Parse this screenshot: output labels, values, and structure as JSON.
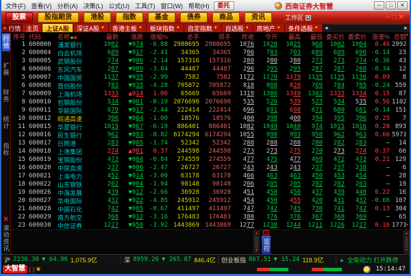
{
  "window": {
    "title": "西南证券大智慧",
    "menu": [
      "文件(F)",
      "查看(V)",
      "分析(A)",
      "决策(L)",
      "公式(U)",
      "工具(T)",
      "窗口(W)",
      "帮助(H)"
    ],
    "trade_label": "委托",
    "win_buttons": [
      "─",
      "□",
      "✕"
    ]
  },
  "toolbar": {
    "buttons": [
      "股票",
      "股指期货",
      "港股",
      "指数",
      "基金",
      "债券",
      "商品",
      "资讯"
    ],
    "active_button": "股票",
    "workspace_label": "工作区",
    "mini_controls": [
      "─",
      "□",
      "✕"
    ]
  },
  "tabbar": {
    "lead_label": "行情",
    "tabs": [
      {
        "label": "主页",
        "dropdown": false,
        "active": false
      },
      {
        "label": "上证A股",
        "dropdown": false,
        "active": true
      },
      {
        "label": "深证A股",
        "dropdown": true,
        "active": false
      },
      {
        "label": "香港主板",
        "dropdown": true,
        "active": false
      },
      {
        "label": "板块指数",
        "dropdown": true,
        "active": false
      },
      {
        "label": "自定指数",
        "dropdown": true,
        "active": false
      },
      {
        "label": "自选股",
        "dropdown": true,
        "active": false
      },
      {
        "label": "房地产",
        "dropdown": true,
        "active": false
      },
      {
        "label": "条件选股",
        "dropdown": true,
        "active": false
      }
    ],
    "scroll_left": "◄",
    "scroll_right": "►"
  },
  "sidebar": {
    "tabs": [
      "行情",
      "扩展",
      "财务",
      "统计",
      "指标"
    ],
    "active_tab": "行情",
    "close_glyph": "✕",
    "news_label": "滚动资讯"
  },
  "table": {
    "headers": [
      "序号",
      "代码",
      "名称",
      "最新",
      "涨跌",
      "涨幅%",
      "总手",
      "现手",
      "昨收",
      "今开",
      "最高",
      "最低",
      "委买价",
      "委卖价",
      "涨速%",
      "总额"
    ],
    "row_fields": [
      "idx",
      "code",
      "name",
      "last",
      "chg",
      "chg_pct",
      "vol",
      "cur",
      "prev",
      "open",
      "high",
      "low",
      "bid",
      "ask",
      "speed",
      "amt"
    ],
    "rows": [
      [
        "1",
        "600000",
        "浦发银行",
        "1002",
        "▼074",
        "-6.88",
        "2980695",
        "2980695",
        "1076",
        "1020",
        "1025",
        "968",
        "1002",
        "1004",
        "0.46",
        "2992"
      ],
      [
        "2",
        "600004",
        "白云机场",
        "689",
        "▼017",
        "-2.41",
        "34365",
        "34365",
        "706",
        "703",
        "703",
        "689",
        "689",
        "690",
        "-0.14",
        "23"
      ],
      [
        "3",
        "600005",
        "武钢股份",
        "274",
        "▼006",
        "-2.14",
        "157316",
        "157316",
        "280",
        "280",
        "280",
        "273",
        "273",
        "274",
        "-0.36",
        "43"
      ],
      [
        "4",
        "600006",
        "东风汽车",
        "287",
        "▼009",
        "-3.04",
        "44487",
        "44487",
        "296",
        "295",
        "295",
        "287",
        "287",
        "288",
        "-0.34",
        "12"
      ],
      [
        "5",
        "600007",
        "中国国贸",
        "1137",
        "▼035",
        "-2.99",
        "7582",
        "7582",
        "1172",
        "1170",
        "1179",
        "1135",
        "1135",
        "1136",
        "0.09",
        "8"
      ],
      [
        "6",
        "600008",
        "首创股份",
        "783",
        "▼035",
        "-4.28",
        "705872",
        "705872",
        "818",
        "808",
        "820",
        "769",
        "784",
        "785",
        "-0.24",
        "559"
      ],
      [
        "7",
        "600009",
        "上海机场",
        "1333",
        "▲014",
        "1.06",
        "65669",
        "65669",
        "1319",
        "1306",
        "1349",
        "1302",
        "1333",
        "1334",
        "0.15",
        "87"
      ],
      [
        "8",
        "600010",
        "包钢股份",
        "534",
        "▼001",
        "-0.19",
        "2076690",
        "2076690",
        "535",
        "526",
        "539",
        "523",
        "534",
        "535",
        "0.56",
        "1102"
      ],
      [
        "9",
        "600011",
        "华能国际",
        "679",
        "▼017",
        "-2.44",
        "222414",
        "222414",
        "696",
        "691",
        "698",
        "671",
        "680",
        "681",
        "-0.14",
        "151"
      ],
      [
        "10",
        "600012",
        "皖通高速",
        "396",
        "▼004",
        "-1.00",
        "18576",
        "18576",
        "400",
        "398",
        "400",
        "394",
        "395",
        "396",
        "0.25",
        "7"
      ],
      [
        "11",
        "600015",
        "华夏银行",
        "1015",
        "▼067",
        "-6.19",
        "886401",
        "886401",
        "1082",
        "1040",
        "1040",
        "974",
        "1015",
        "1016",
        "0.28",
        "893"
      ],
      [
        "12",
        "600016",
        "民生银行",
        "962",
        "▼093",
        "-8.82",
        "6174294",
        "6174294",
        "1055",
        "990",
        "993",
        "950",
        "962",
        "963",
        "0.66",
        "5971"
      ],
      [
        "13",
        "600017",
        "日照港",
        "283",
        "▼005",
        "-1.74",
        "52342",
        "52342",
        "288",
        "288",
        "288",
        "280",
        "282",
        "283",
        "—",
        "14"
      ],
      [
        "14",
        "600018",
        "上港集团",
        "274",
        "▲001",
        "0.37",
        "244598",
        "244598",
        "273",
        "273",
        "275",
        "270",
        "273",
        "274",
        "0.37",
        "66"
      ],
      [
        "15",
        "600019",
        "宝钢股份",
        "473",
        "▼004",
        "-0.84",
        "274559",
        "274559",
        "477",
        "475",
        "477",
        "469",
        "472",
        "473",
        "0.21",
        "129"
      ],
      [
        "16",
        "600020",
        "中原高速",
        "237",
        "▼006",
        "-2.47",
        "26727",
        "26727",
        "243",
        "243",
        "243",
        "237",
        "237",
        "238",
        "—",
        "6"
      ],
      [
        "17",
        "600021",
        "上海电力",
        "452",
        "▼014",
        "-3.00",
        "63178",
        "63178",
        "466",
        "463",
        "463",
        "450",
        "453",
        "454",
        "—",
        "28"
      ],
      [
        "18",
        "600022",
        "山东钢铁",
        "202",
        "▼004",
        "-1.94",
        "98148",
        "98148",
        "206",
        "205",
        "205",
        "202",
        "202",
        "203",
        "—",
        "19"
      ],
      [
        "19",
        "600026",
        "中海发展",
        "439",
        "▼012",
        "-2.66",
        "36928",
        "36928",
        "451",
        "450",
        "450",
        "437",
        "439",
        "440",
        "0.22",
        "16"
      ],
      [
        "20",
        "600027",
        "华电国际",
        "432",
        "▼022",
        "-4.85",
        "245912",
        "245912",
        "454",
        "450",
        "455",
        "420",
        "431",
        "432",
        "-0.66",
        "107"
      ],
      [
        "21",
        "600028",
        "中国石化",
        "742",
        "▼005",
        "-0.67",
        "411497",
        "411497",
        "747",
        "742",
        "745",
        "730",
        "741",
        "742",
        "0.13",
        "304"
      ],
      [
        "22",
        "600029",
        "南方航空",
        "368",
        "▼012",
        "-3.16",
        "176483",
        "176483",
        "380",
        "376",
        "376",
        "367",
        "368",
        "369",
        "—",
        "65"
      ],
      [
        "23",
        "600030",
        "中信证券",
        "1227",
        "▼050",
        "-3.92",
        "1443869",
        "1443869",
        "1277",
        "1238",
        "1244",
        "1211",
        "1226",
        "1227",
        "0.16",
        "1771"
      ]
    ],
    "special_name_color_rows": {
      "9": "#c9c900"
    }
  },
  "monitor": {
    "label": "监控"
  },
  "statusbar": {
    "sh_label": "沪",
    "sh_value": "2236.30",
    "sh_chg": "▼ 64.96",
    "sh_amt": "1,075.9亿",
    "sz_label": "深",
    "sz_value": "8959.26",
    "sz_chg": "▼ 265.87",
    "sz_amt": "846.4亿",
    "cyb_label": "创业板指",
    "cyb_value": "867.51",
    "cyb_chg": "▼ 15.24",
    "cyb_amt": "118.9亿",
    "ticker_up": "▲",
    "ticker_text": "全柴动力 打开跌停"
  },
  "bottombar": {
    "logo": "大智慧",
    "paren": "( )",
    "star": "★",
    "time": "15:14:47"
  },
  "colors": {
    "up": "#ff4242",
    "down": "#00cc44",
    "volume": "#d6d600",
    "current": "#e46060",
    "name": "#00c9c9",
    "accent_yellow": "#f2b800",
    "toolbar_red": "#b01c10"
  }
}
